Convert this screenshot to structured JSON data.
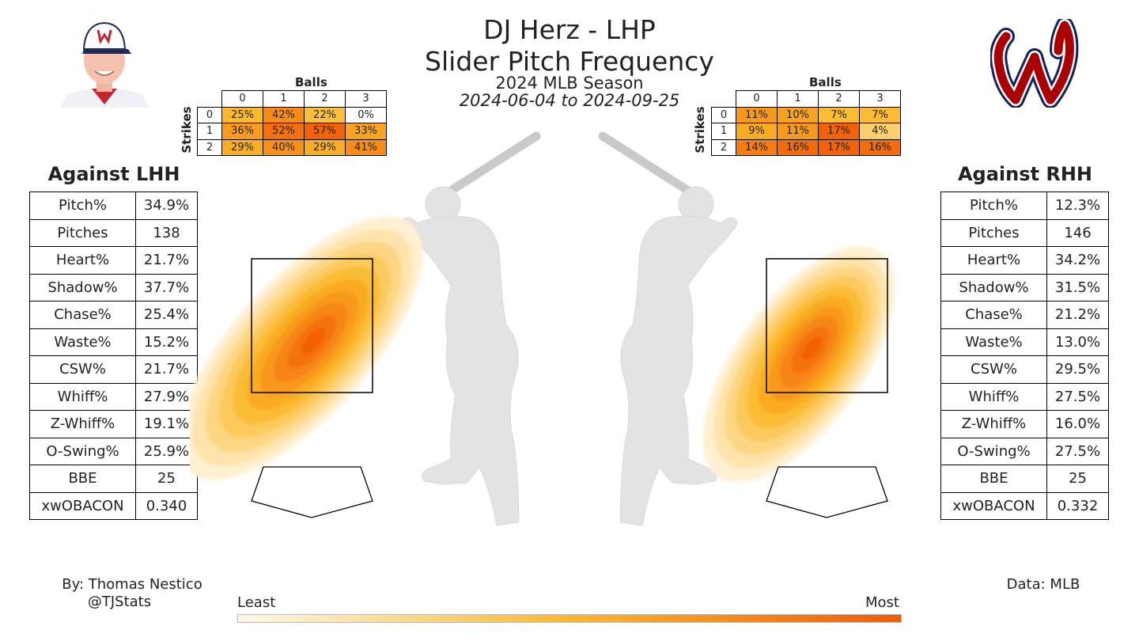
{
  "title": "DJ Herz - LHP",
  "subtitle": "Slider Pitch Frequency",
  "season": "2024 MLB Season",
  "date_range": "2024-06-04 to 2024-09-25",
  "left": {
    "title": "Against LHH",
    "stats": [
      {
        "label": "Pitch%",
        "value": "34.9%"
      },
      {
        "label": "Pitches",
        "value": "138"
      },
      {
        "label": "Heart%",
        "value": "21.7%"
      },
      {
        "label": "Shadow%",
        "value": "37.7%"
      },
      {
        "label": "Chase%",
        "value": "25.4%"
      },
      {
        "label": "Waste%",
        "value": "15.2%"
      },
      {
        "label": "CSW%",
        "value": "21.7%"
      },
      {
        "label": "Whiff%",
        "value": "27.9%"
      },
      {
        "label": "Z-Whiff%",
        "value": "19.1%"
      },
      {
        "label": "O-Swing%",
        "value": "25.9%"
      },
      {
        "label": "BBE",
        "value": "25"
      },
      {
        "label": "xwOBACON",
        "value": "0.340"
      }
    ],
    "count_table": {
      "balls_label": "Balls",
      "strikes_label": "Strikes",
      "balls": [
        "0",
        "1",
        "2",
        "3"
      ],
      "strikes": [
        "0",
        "1",
        "2"
      ],
      "cells": [
        [
          "25%",
          "42%",
          "22%",
          "0%"
        ],
        [
          "36%",
          "52%",
          "57%",
          "33%"
        ],
        [
          "29%",
          "40%",
          "29%",
          "41%"
        ]
      ],
      "values": [
        [
          25,
          42,
          22,
          0
        ],
        [
          36,
          52,
          57,
          33
        ],
        [
          29,
          40,
          29,
          41
        ]
      ]
    }
  },
  "right": {
    "title": "Against RHH",
    "stats": [
      {
        "label": "Pitch%",
        "value": "12.3%"
      },
      {
        "label": "Pitches",
        "value": "146"
      },
      {
        "label": "Heart%",
        "value": "34.2%"
      },
      {
        "label": "Shadow%",
        "value": "31.5%"
      },
      {
        "label": "Chase%",
        "value": "21.2%"
      },
      {
        "label": "Waste%",
        "value": "13.0%"
      },
      {
        "label": "CSW%",
        "value": "29.5%"
      },
      {
        "label": "Whiff%",
        "value": "27.5%"
      },
      {
        "label": "Z-Whiff%",
        "value": "16.0%"
      },
      {
        "label": "O-Swing%",
        "value": "27.5%"
      },
      {
        "label": "BBE",
        "value": "25"
      },
      {
        "label": "xwOBACON",
        "value": "0.332"
      }
    ],
    "count_table": {
      "balls_label": "Balls",
      "strikes_label": "Strikes",
      "balls": [
        "0",
        "1",
        "2",
        "3"
      ],
      "strikes": [
        "0",
        "1",
        "2"
      ],
      "cells": [
        [
          "11%",
          "10%",
          "7%",
          "7%"
        ],
        [
          "9%",
          "11%",
          "17%",
          "4%"
        ],
        [
          "14%",
          "16%",
          "17%",
          "16%"
        ]
      ],
      "values": [
        [
          11,
          10,
          7,
          7
        ],
        [
          9,
          11,
          17,
          4
        ],
        [
          14,
          16,
          17,
          16
        ]
      ]
    }
  },
  "footer": {
    "author": "By: Thomas Nestico",
    "handle": "@TJStats",
    "source": "Data: MLB",
    "scale_min": "Least",
    "scale_max": "Most"
  },
  "colors": {
    "least": "#fff8e8",
    "mid": "#fbb829",
    "most": "#f25c05",
    "silhouette": "#e3e3e3",
    "team_red": "#ab0003",
    "team_navy": "#14225a"
  },
  "chart_data": {
    "type": "heatmap",
    "title": "Slider Pitch Frequency",
    "colorbar": {
      "min_label": "Least",
      "max_label": "Most"
    },
    "panels": [
      {
        "batter_hand": "LHH",
        "density_peak": "middle-left of strike zone, extending low and outside"
      },
      {
        "batter_hand": "RHH",
        "density_peak": "center of strike zone, shifted low-left"
      }
    ]
  }
}
